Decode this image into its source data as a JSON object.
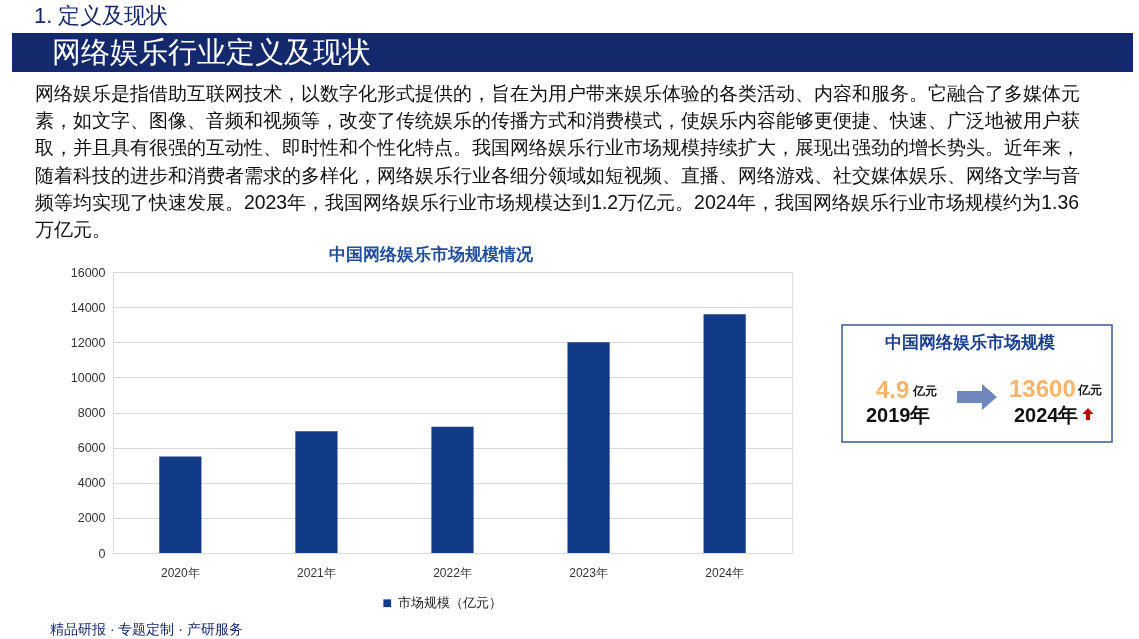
{
  "chart_data": [
    {
      "type": "bar",
      "title": "中国网络娱乐市场规模情况",
      "categories": [
        "2020年",
        "2021年",
        "2022年",
        "2023年",
        "2024年"
      ],
      "series": [
        {
          "name": "市场规模（亿元）",
          "color": "#113a87",
          "values": [
            5500,
            6930,
            7190,
            12000,
            13600
          ]
        }
      ],
      "ylim": [
        0,
        16000
      ],
      "yticks": [
        0,
        2000,
        4000,
        6000,
        8000,
        10000,
        12000,
        14000,
        16000
      ],
      "grid": "y",
      "legend": "bottom",
      "annotations": [
        "1. 定义及现状",
        "网络娱乐行业定义及现状",
        "网络娱乐是指借助互联网技术，以数字化形式提供的，旨在为用户带来娱乐体验的各类活动、内容和服务。它融合了多媒体元素，如文字、图像、音频和视频等，改变了传统娱乐的传播方式和消费模式，使娱乐内容能够更便捷、快速、广泛地被用户获取，并且具有很强的互动性、即时性和个性化特点。我国网络娱乐行业市场规模持续扩大，展现出强劲的增长势头。近年来，随着科技的进步和消费者需求的多样化，网络娱乐行业各细分领域如短视频、直播、网络游戏、社交媒体娱乐、网络文学与音频等均实现了快速发展。2023年，我国网络娱乐行业市场规模达到1.2万亿元。2024年，我国网络娱乐行业市场规模约为1.36万亿元。",
        "精品研报 · 专题定制 · 产研服务"
      ]
    },
    {
      "type": "other",
      "title": "中国网络娱乐市场规模",
      "categories": [
        "2019年",
        "2024年"
      ],
      "values": [
        4.9,
        13600
      ],
      "data_labels": true,
      "annotations": [
        "亿元",
        "亿元"
      ]
    }
  ]
}
